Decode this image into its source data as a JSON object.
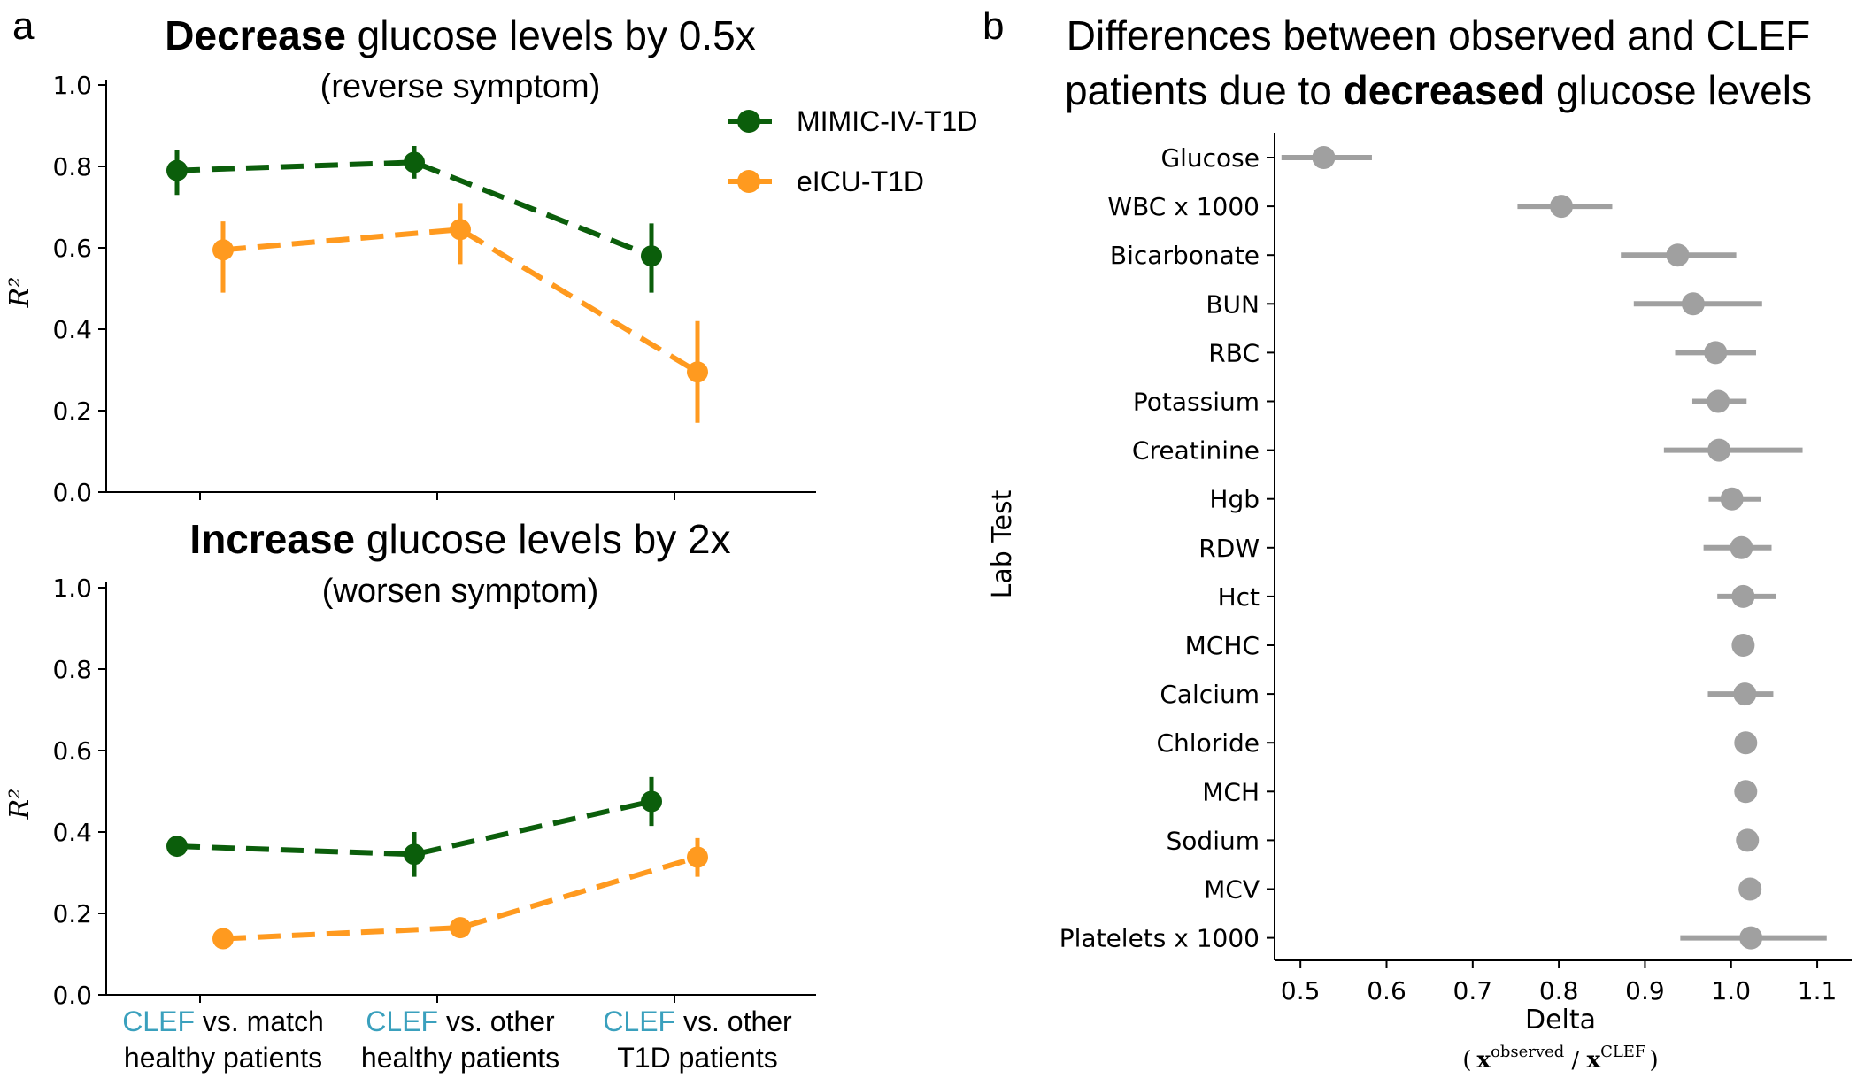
{
  "panels": {
    "a_letter": "a",
    "b_letter": "b"
  },
  "legend": {
    "entries": [
      {
        "label": "MIMIC-IV-T1D",
        "color": "#0b5e0b"
      },
      {
        "label": "eICU-T1D",
        "color": "#ff9a1f"
      }
    ]
  },
  "colors": {
    "mimic": "#0b5e0b",
    "eicu": "#ff9a1f",
    "dot_b": "#a0a0a0",
    "accent_clef": "#3aa0bd"
  },
  "category_labels": [
    {
      "accent": "CLEF",
      "rest": " vs. match",
      "line2": "healthy patients"
    },
    {
      "accent": "CLEF",
      "rest": " vs. other",
      "line2": "healthy patients"
    },
    {
      "accent": "CLEF",
      "rest": " vs. other",
      "line2": "T1D patients"
    }
  ],
  "chart_data": [
    {
      "type": "line",
      "title_bold": "Decrease",
      "title_rest": " glucose levels by 0.5x",
      "subtitle": "(reverse symptom)",
      "ylabel": "R²",
      "ylim": [
        0,
        1.0
      ],
      "yticks": [
        "0.0",
        "0.2",
        "0.4",
        "0.6",
        "0.8",
        "1.0"
      ],
      "categories": [
        "CLEF vs. match healthy patients",
        "CLEF vs. other healthy patients",
        "CLEF vs. other T1D patients"
      ],
      "series": [
        {
          "name": "MIMIC-IV-T1D",
          "values": [
            0.79,
            0.81,
            0.58
          ],
          "err_low": [
            0.73,
            0.77,
            0.49
          ],
          "err_high": [
            0.84,
            0.85,
            0.66
          ]
        },
        {
          "name": "eICU-T1D",
          "values": [
            0.595,
            0.645,
            0.295
          ],
          "err_low": [
            0.49,
            0.56,
            0.17
          ],
          "err_high": [
            0.665,
            0.71,
            0.42
          ]
        }
      ]
    },
    {
      "type": "line",
      "title_bold": "Increase",
      "title_rest": " glucose levels by 2x",
      "subtitle": "(worsen symptom)",
      "ylabel": "R²",
      "ylim": [
        0,
        1.0
      ],
      "yticks": [
        "0.0",
        "0.2",
        "0.4",
        "0.6",
        "0.8",
        "1.0"
      ],
      "categories": [
        "CLEF vs. match healthy patients",
        "CLEF vs. other healthy patients",
        "CLEF vs. other T1D patients"
      ],
      "series": [
        {
          "name": "MIMIC-IV-T1D",
          "values": [
            0.365,
            0.345,
            0.475
          ],
          "err_low": [
            0.365,
            0.29,
            0.415
          ],
          "err_high": [
            0.365,
            0.4,
            0.535
          ]
        },
        {
          "name": "eICU-T1D",
          "values": [
            0.138,
            0.165,
            0.338
          ],
          "err_low": [
            0.138,
            0.14,
            0.29
          ],
          "err_high": [
            0.138,
            0.19,
            0.385
          ]
        }
      ]
    },
    {
      "type": "scatter",
      "title_line1": "Differences between observed and CLEF",
      "title_line2_pre": "patients due to ",
      "title_line2_bold": "decreased",
      "title_line2_post": " glucose levels",
      "xlabel": "Delta",
      "xlabel_formula": {
        "open": "(",
        "num": "x",
        "num_sup": "observed",
        "slash": " / ",
        "den": "x",
        "den_sup": "CLEF",
        "close": ")"
      },
      "ylabel": "Lab Test",
      "xlim": [
        0.47,
        1.14
      ],
      "xticks": [
        "0.5",
        "0.6",
        "0.7",
        "0.8",
        "0.9",
        "1.0",
        "1.1"
      ],
      "points": [
        {
          "label": "Glucose",
          "value": 0.527,
          "low": 0.478,
          "high": 0.583
        },
        {
          "label": "WBC x 1000",
          "value": 0.803,
          "low": 0.752,
          "high": 0.862
        },
        {
          "label": "Bicarbonate",
          "value": 0.938,
          "low": 0.872,
          "high": 1.006
        },
        {
          "label": "BUN",
          "value": 0.956,
          "low": 0.887,
          "high": 1.036
        },
        {
          "label": "RBC",
          "value": 0.982,
          "low": 0.935,
          "high": 1.029
        },
        {
          "label": "Potassium",
          "value": 0.985,
          "low": 0.955,
          "high": 1.018
        },
        {
          "label": "Creatinine",
          "value": 0.986,
          "low": 0.922,
          "high": 1.083
        },
        {
          "label": "Hgb",
          "value": 1.001,
          "low": 0.974,
          "high": 1.035
        },
        {
          "label": "RDW",
          "value": 1.012,
          "low": 0.968,
          "high": 1.047
        },
        {
          "label": "Hct",
          "value": 1.014,
          "low": 0.984,
          "high": 1.052
        },
        {
          "label": "MCHC",
          "value": 1.014,
          "low": 1.014,
          "high": 1.014
        },
        {
          "label": "Calcium",
          "value": 1.016,
          "low": 0.973,
          "high": 1.049
        },
        {
          "label": "Chloride",
          "value": 1.017,
          "low": 1.017,
          "high": 1.017
        },
        {
          "label": "MCH",
          "value": 1.017,
          "low": 1.017,
          "high": 1.017
        },
        {
          "label": "Sodium",
          "value": 1.019,
          "low": 1.019,
          "high": 1.019
        },
        {
          "label": "MCV",
          "value": 1.022,
          "low": 1.022,
          "high": 1.022
        },
        {
          "label": "Platelets x 1000",
          "value": 1.023,
          "low": 0.941,
          "high": 1.111
        }
      ]
    }
  ]
}
